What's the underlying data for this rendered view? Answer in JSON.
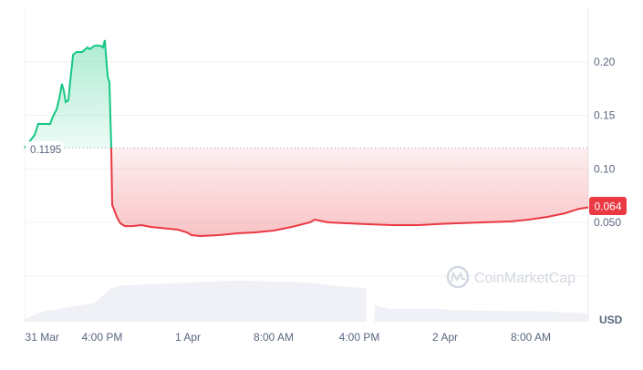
{
  "chart_data": {
    "type": "area",
    "currency": "USD",
    "watermark": "CoinMarketCap",
    "reference_price": 0.1195,
    "reference_label": "0.1195",
    "current_price_label": "0.064",
    "ylim": [
      0,
      0.25
    ],
    "y_ticks": [
      {
        "value": 0.2,
        "label": "0.20"
      },
      {
        "value": 0.15,
        "label": "0.15"
      },
      {
        "value": 0.1,
        "label": "0.10"
      },
      {
        "value": 0.05,
        "label": "0.050"
      }
    ],
    "x_ticks": [
      {
        "time": "03-31 10:24",
        "label": "31 Mar"
      },
      {
        "time": "03-31 16:00",
        "label": "4:00 PM"
      },
      {
        "time": "04-01 00:00",
        "label": "1 Apr"
      },
      {
        "time": "04-01 08:00",
        "label": "8:00 AM"
      },
      {
        "time": "04-01 16:00",
        "label": "4:00 PM"
      },
      {
        "time": "04-02 00:00",
        "label": "2 Apr"
      },
      {
        "time": "04-02 08:00",
        "label": "8:00 AM"
      }
    ],
    "colors": {
      "up": "#16c784",
      "down": "#ea3943",
      "volume": "#eff1f6",
      "grid": "#f1f1f1",
      "axis_text": "#58667e"
    },
    "price": [
      [
        "03-31 08:46",
        0.1195
      ],
      [
        "03-31 09:42",
        0.1318
      ],
      [
        "03-31 10:02",
        0.142
      ],
      [
        "03-31 11:09",
        0.142
      ],
      [
        "03-31 11:24",
        0.1489
      ],
      [
        "03-31 11:45",
        0.1557
      ],
      [
        "03-31 12:00",
        0.166
      ],
      [
        "03-31 12:15",
        0.1796
      ],
      [
        "03-31 12:26",
        0.1727
      ],
      [
        "03-31 12:36",
        0.1625
      ],
      [
        "03-31 12:51",
        0.1642
      ],
      [
        "03-31 13:01",
        0.1812
      ],
      [
        "03-31 13:17",
        0.2068
      ],
      [
        "03-31 13:37",
        0.2094
      ],
      [
        "03-31 14:08",
        0.2094
      ],
      [
        "03-31 14:38",
        0.2136
      ],
      [
        "03-31 14:49",
        0.2119
      ],
      [
        "03-31 15:19",
        0.2153
      ],
      [
        "03-31 15:50",
        0.2153
      ],
      [
        "03-31 16:05",
        0.2136
      ],
      [
        "03-31 16:15",
        0.2205
      ],
      [
        "03-31 16:31",
        0.1864
      ],
      [
        "03-31 16:41",
        0.1812
      ],
      [
        "03-31 16:51",
        0.1195
      ],
      [
        "03-31 16:56",
        0.0662
      ],
      [
        "03-31 17:07",
        0.0619
      ],
      [
        "03-31 17:22",
        0.055
      ],
      [
        "03-31 17:42",
        0.049
      ],
      [
        "03-31 18:08",
        0.0465
      ],
      [
        "03-31 18:49",
        0.0465
      ],
      [
        "03-31 19:40",
        0.0474
      ],
      [
        "03-31 20:31",
        0.0457
      ],
      [
        "03-31 21:22",
        0.0448
      ],
      [
        "03-31 22:13",
        0.044
      ],
      [
        "03-31 23:04",
        0.0431
      ],
      [
        "03-31 23:55",
        0.0406
      ],
      [
        "04-01 00:20",
        0.038
      ],
      [
        "04-01 01:11",
        0.0372
      ],
      [
        "04-01 02:54",
        0.038
      ],
      [
        "04-01 04:36",
        0.0397
      ],
      [
        "04-01 06:18",
        0.0406
      ],
      [
        "04-01 08:00",
        0.0423
      ],
      [
        "04-01 09:42",
        0.0457
      ],
      [
        "04-01 11:24",
        0.05
      ],
      [
        "04-01 11:50",
        0.0525
      ],
      [
        "04-01 13:06",
        0.05
      ],
      [
        "04-01 14:48",
        0.0491
      ],
      [
        "04-01 16:30",
        0.0483
      ],
      [
        "04-01 19:04",
        0.0474
      ],
      [
        "04-01 21:36",
        0.0474
      ],
      [
        "04-01 23:18",
        0.0483
      ],
      [
        "04-02 01:00",
        0.0491
      ],
      [
        "04-02 03:34",
        0.05
      ],
      [
        "04-02 06:06",
        0.0508
      ],
      [
        "04-02 07:48",
        0.0525
      ],
      [
        "04-02 09:30",
        0.055
      ],
      [
        "04-02 11:12",
        0.0585
      ],
      [
        "04-02 12:30",
        0.0627
      ],
      [
        "04-02 13:22",
        0.064
      ]
    ],
    "volume_relative": [
      [
        "03-31 08:46",
        6
      ],
      [
        "03-31 10:30",
        25
      ],
      [
        "03-31 13:00",
        35
      ],
      [
        "03-31 15:20",
        45
      ],
      [
        "03-31 16:40",
        77
      ],
      [
        "03-31 17:40",
        86
      ],
      [
        "03-31 23:40",
        93
      ],
      [
        "04-01 04:20",
        98
      ],
      [
        "04-01 06:30",
        97
      ],
      [
        "04-01 11:40",
        93
      ],
      [
        "04-01 13:20",
        86
      ],
      [
        "04-01 16:40",
        80
      ],
      [
        "04-01 16:41",
        0
      ],
      [
        "04-01 17:25",
        0
      ],
      [
        "04-01 17:26",
        40
      ],
      [
        "04-01 18:40",
        31
      ],
      [
        "04-01 23:20",
        31
      ],
      [
        "04-02 01:00",
        27
      ],
      [
        "04-02 09:30",
        25
      ],
      [
        "04-02 13:22",
        19
      ]
    ]
  }
}
